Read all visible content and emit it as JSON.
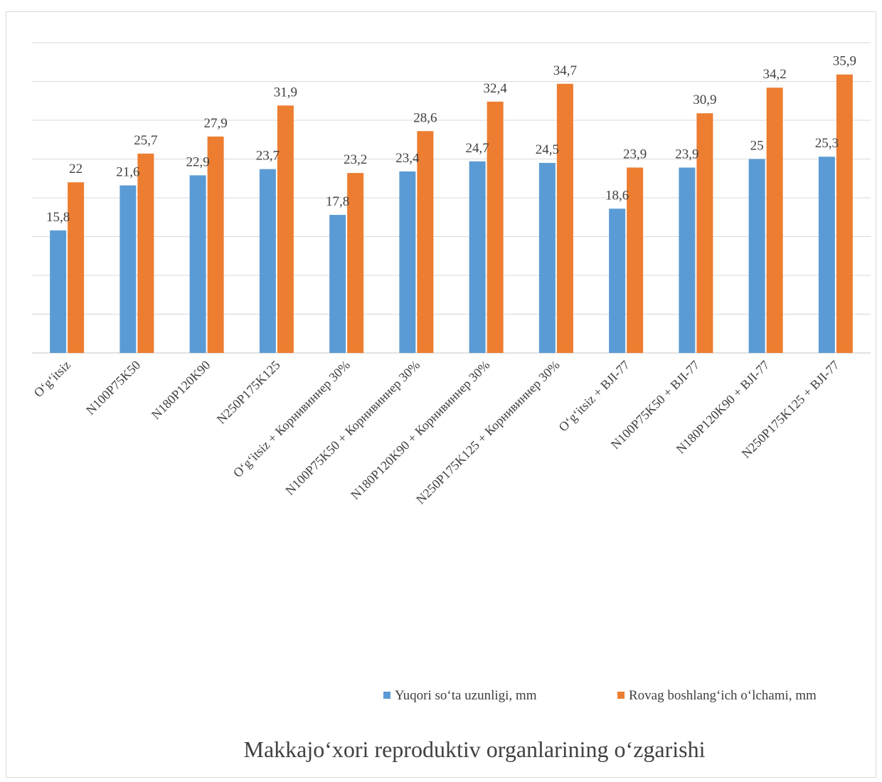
{
  "chart_data": {
    "type": "bar",
    "title": "Makkajo‘xori reproduktiv organlarining o‘zgarishi",
    "xlabel": "",
    "ylabel": "",
    "ylim": [
      0,
      35
    ],
    "grid": true,
    "legend_position": "bottom-right",
    "categories": [
      "O‘g‘itsiz",
      "N100P75K50",
      "N180P120K90",
      "N250P175K125",
      "O‘g‘itsiz + Корнивиннер 30%",
      "N100P75K50 + Корнивиннер 30%",
      "N180P120K90 + Корнивиннер 30%",
      "N250P175K125 + Корнивиннер 30%",
      "O‘g‘itsiz + BJI-77",
      "N100P75K50 + BJI-77",
      "N180P120K90 + BJI-77",
      "N250P175K125 + BJI-77"
    ],
    "series": [
      {
        "name": "Yuqori so‘ta uzunligi, mm",
        "color": "#5b9bd5",
        "values": [
          15.8,
          21.6,
          22.9,
          23.7,
          17.8,
          23.4,
          24.7,
          24.5,
          18.6,
          23.9,
          25,
          25.3
        ],
        "labels": [
          "15,8",
          "21,6",
          "22,9",
          "23,7",
          "17,8",
          "23,4",
          "24,7",
          "24,5",
          "18,6",
          "23,9",
          "25",
          "25,3"
        ]
      },
      {
        "name": "Rovag boshlang‘ich o‘lchami, mm",
        "color": "#ed7d31",
        "values": [
          22,
          25.7,
          27.9,
          31.9,
          23.2,
          28.6,
          32.4,
          34.7,
          23.9,
          30.9,
          34.2,
          35.9
        ],
        "labels": [
          "22",
          "25,7",
          "27,9",
          "31,9",
          "23,2",
          "28,6",
          "32,4",
          "34,7",
          "23,9",
          "30,9",
          "34,2",
          "35,9"
        ]
      }
    ]
  }
}
